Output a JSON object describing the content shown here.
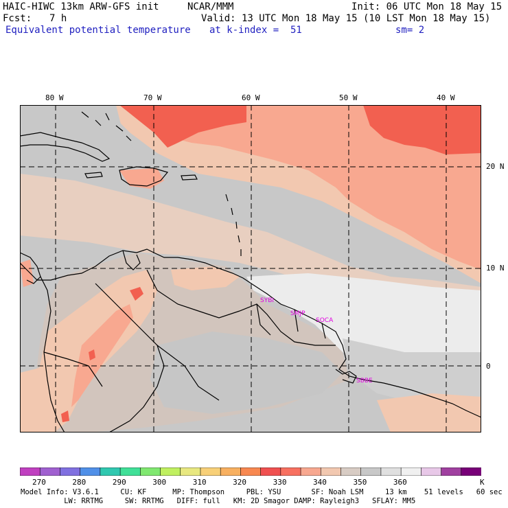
{
  "header": {
    "model_title": "HAIC-HIWC 13km ARW-GFS init",
    "org": "NCAR/MMM",
    "init": "Init: 06 UTC Mon 18 May 15",
    "fcst_label": "Fcst:",
    "fcst_value": "7 h",
    "valid": "Valid: 13 UTC Mon 18 May 15 (10 LST Mon 18 May 15)",
    "field": "Equivalent potential temperature",
    "level": "at k-index =  51",
    "smoothing": "sm= 2"
  },
  "map": {
    "lon_labels": [
      "80 W",
      "70 W",
      "60 W",
      "50 W",
      "40 W"
    ],
    "lat_labels": [
      "20 N",
      "10 N",
      "0"
    ],
    "stations": [
      "SYBI",
      "SMJP",
      "SOCA",
      "SBBE"
    ],
    "colors": {
      "ocean_gray": "#c8c8c8",
      "land_tan": "#d2c5bd",
      "light_peach": "#f2c8b0",
      "salmon": "#f8a890",
      "red_orange": "#f26050",
      "near_white": "#ececec",
      "station_magenta": "#e000e0"
    }
  },
  "colorbar": {
    "colors": [
      "#c040c0",
      "#a060d0",
      "#8070e0",
      "#5090e8",
      "#30c8b0",
      "#40e098",
      "#80e870",
      "#c0f060",
      "#e8e880",
      "#f8d078",
      "#f8b060",
      "#f88850",
      "#f05050",
      "#f87060",
      "#f8a890",
      "#f2c8b0",
      "#d8ccc4",
      "#c8c8c8",
      "#e0e0e0",
      "#f0f0f0",
      "#e8c8e8",
      "#a040a0",
      "#780078"
    ],
    "labels": [
      "270",
      "280",
      "290",
      "300",
      "310",
      "320",
      "330",
      "340",
      "350",
      "360"
    ],
    "unit": "K"
  },
  "footer": {
    "line1": "Model Info: V3.6.1     CU: KF      MP: Thompson     PBL: YSU       SF: Noah LSM     13 km    51 levels   60 sec",
    "line2": "          LW: RRTMG     SW: RRTMG   DIFF: full   KM: 2D Smagor DAMP: Rayleigh3   SFLAY: MM5"
  }
}
